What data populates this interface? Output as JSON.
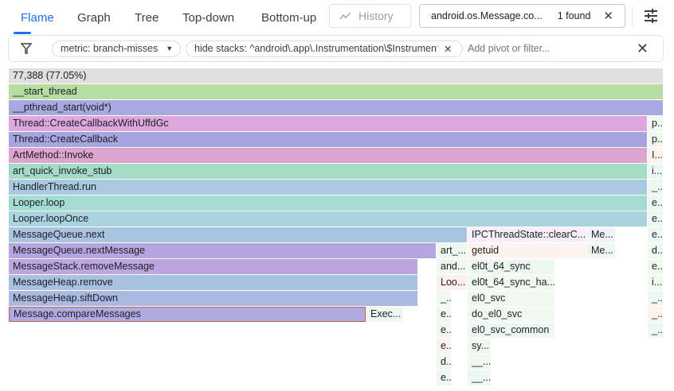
{
  "tabs": [
    {
      "label": "Flame",
      "active": true
    },
    {
      "label": "Graph"
    },
    {
      "label": "Tree"
    },
    {
      "label": "Top-down"
    },
    {
      "label": "Bottom-up"
    }
  ],
  "history": {
    "label": "History",
    "icon": "trend-icon"
  },
  "search": {
    "value": "android.os.Message.co...",
    "found": "1 found",
    "clear_icon": "close-icon"
  },
  "settings_icon": "tune-icon",
  "filter": {
    "icon": "filter-icon",
    "metric_chip": "metric: branch-misses",
    "hide_chip": "hide stacks: ^android\\.app\\.Instrumentation\\$Instrumentati",
    "placeholder": "Add pivot or filter...",
    "clear_icon": "close-icon"
  },
  "colors": {
    "accent": "#1a73e8",
    "highlight_border": "#c0614d"
  },
  "flame": {
    "frames": [
      "77,388 (77.05%)",
      "__start_thread",
      "__pthread_start(void*)",
      "Thread::CreateCallbackWithUffdGc",
      "p..",
      "Thread::CreateCallback",
      "p..",
      "ArtMethod::Invoke",
      "I...",
      "art_quick_invoke_stub",
      "i...",
      "HandlerThread.run",
      "_...",
      "Looper.loop",
      "e..",
      "Looper.loopOnce",
      "e..",
      "MessageQueue.next",
      "IPCThreadState::clearC...",
      "Me...",
      "e..",
      "MessageQueue.nextMessage",
      "art_...",
      "getuid",
      "Me...",
      "d..",
      "MessageStack.removeMessage",
      "and...",
      "el0t_64_sync",
      "e..",
      "MessageHeap.remove",
      "Loo...",
      "el0t_64_sync_ha...",
      "i...",
      "MessageHeap.siftDown",
      "_...",
      "el0_svc",
      "_...",
      "Message.compareMessages",
      "Exec...",
      "e..",
      "do_el0_svc",
      "_...",
      "e..",
      "el0_svc_common",
      "_...",
      "e..",
      "sy...",
      "d..",
      "__...",
      "e..",
      "__..."
    ]
  }
}
